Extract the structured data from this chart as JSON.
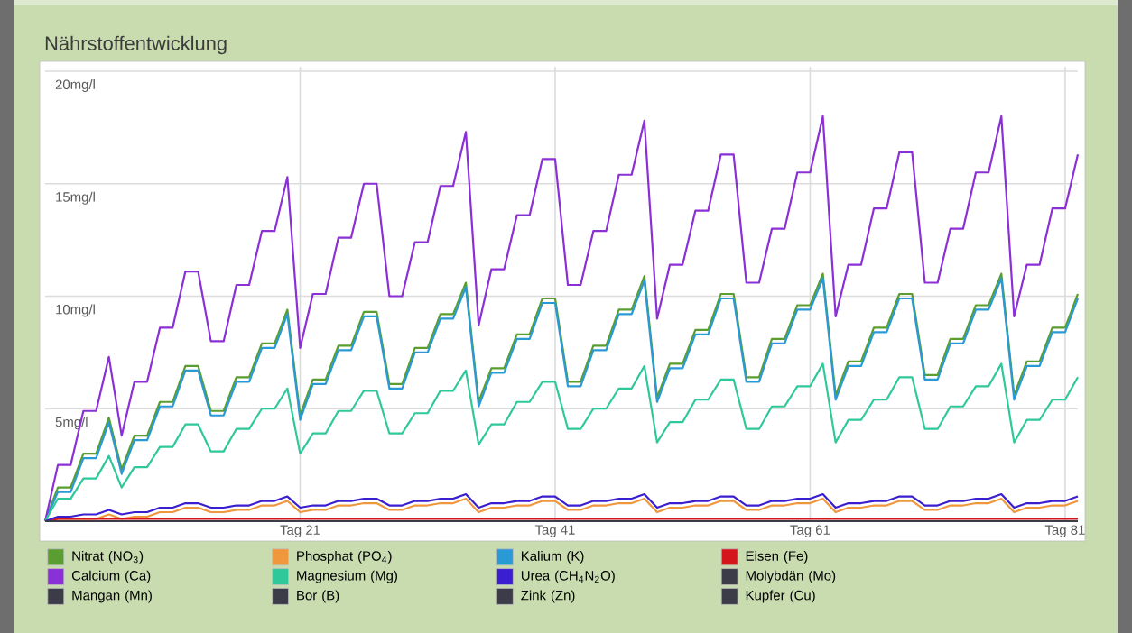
{
  "chart_data": {
    "type": "line",
    "title": "Nährstoffentwicklung",
    "categories": [
      null,
      null,
      null,
      null,
      null,
      null,
      null,
      null,
      null,
      null,
      null,
      null,
      null,
      null,
      null,
      null,
      null,
      null,
      null,
      null,
      "Tag 21",
      null,
      null,
      null,
      null,
      null,
      null,
      null,
      null,
      null,
      null,
      null,
      null,
      null,
      null,
      null,
      null,
      null,
      null,
      null,
      "Tag 41",
      null,
      null,
      null,
      null,
      null,
      null,
      null,
      null,
      null,
      null,
      null,
      null,
      null,
      null,
      null,
      null,
      null,
      null,
      null,
      "Tag 61",
      null,
      null,
      null,
      null,
      null,
      null,
      null,
      null,
      null,
      null,
      null,
      null,
      null,
      null,
      null,
      null,
      null,
      null,
      null,
      "Tag 81",
      null
    ],
    "ylim": [
      0,
      20.2
    ],
    "yticks": [
      {
        "value": 5,
        "label": "5mg/l"
      },
      {
        "value": 10,
        "label": "10mg/l"
      },
      {
        "value": 15,
        "label": "15mg/l"
      },
      {
        "value": 20,
        "label": "20mg/l"
      }
    ],
    "grid": true,
    "legend": "bottom",
    "line_style": "solid",
    "series": [
      {
        "name": "Nitrat (NO$_{3}$)",
        "color": "#5a9e2f",
        "values": [
          0,
          1.5,
          1.5,
          3.0,
          3.0,
          4.6,
          2.3,
          3.8,
          3.8,
          5.3,
          5.3,
          6.9,
          6.9,
          4.9,
          4.9,
          6.4,
          6.4,
          7.9,
          7.9,
          9.4,
          4.7,
          6.3,
          6.3,
          7.8,
          7.8,
          9.3,
          9.3,
          6.1,
          6.1,
          7.7,
          7.7,
          9.2,
          9.2,
          10.6,
          5.3,
          6.8,
          6.8,
          8.3,
          8.3,
          9.9,
          9.9,
          6.2,
          6.2,
          7.8,
          7.8,
          9.4,
          9.4,
          10.9,
          5.5,
          7.0,
          7.0,
          8.5,
          8.5,
          10.1,
          10.1,
          6.4,
          6.4,
          8.1,
          8.1,
          9.6,
          9.6,
          11.0,
          5.6,
          7.1,
          7.1,
          8.6,
          8.6,
          10.1,
          10.1,
          6.5,
          6.5,
          8.1,
          8.1,
          9.6,
          9.6,
          11.0,
          5.6,
          7.1,
          7.1,
          8.6,
          8.6,
          10.1
        ]
      },
      {
        "name": "Phosphat (PO$_{4}$)",
        "color": "#f0963c",
        "values": [
          0,
          0.1,
          0.1,
          0.1,
          0.1,
          0.3,
          0.1,
          0.2,
          0.2,
          0.4,
          0.4,
          0.6,
          0.6,
          0.4,
          0.4,
          0.5,
          0.5,
          0.7,
          0.7,
          0.9,
          0.4,
          0.5,
          0.5,
          0.7,
          0.7,
          0.8,
          0.8,
          0.5,
          0.5,
          0.7,
          0.7,
          0.8,
          0.8,
          1.0,
          0.4,
          0.6,
          0.6,
          0.7,
          0.7,
          0.9,
          0.9,
          0.5,
          0.5,
          0.7,
          0.7,
          0.8,
          0.8,
          1.0,
          0.4,
          0.6,
          0.6,
          0.7,
          0.7,
          0.9,
          0.9,
          0.5,
          0.5,
          0.7,
          0.7,
          0.8,
          0.8,
          1.0,
          0.4,
          0.6,
          0.6,
          0.7,
          0.7,
          0.9,
          0.9,
          0.5,
          0.5,
          0.7,
          0.7,
          0.8,
          0.8,
          1.0,
          0.4,
          0.6,
          0.6,
          0.7,
          0.7,
          0.9
        ]
      },
      {
        "name": "Kalium (K)",
        "color": "#2a9ad6",
        "values": [
          0,
          1.3,
          1.3,
          2.8,
          2.8,
          4.4,
          2.1,
          3.6,
          3.6,
          5.1,
          5.1,
          6.7,
          6.7,
          4.7,
          4.7,
          6.2,
          6.2,
          7.7,
          7.7,
          9.2,
          4.5,
          6.1,
          6.1,
          7.6,
          7.6,
          9.1,
          9.1,
          5.9,
          5.9,
          7.5,
          7.5,
          9.0,
          9.0,
          10.4,
          5.1,
          6.6,
          6.6,
          8.1,
          8.1,
          9.7,
          9.7,
          6.0,
          6.0,
          7.6,
          7.6,
          9.2,
          9.2,
          10.7,
          5.3,
          6.8,
          6.8,
          8.3,
          8.3,
          9.9,
          9.9,
          6.2,
          6.2,
          7.9,
          7.9,
          9.4,
          9.4,
          10.8,
          5.4,
          6.9,
          6.9,
          8.4,
          8.4,
          9.9,
          9.9,
          6.3,
          6.3,
          7.9,
          7.9,
          9.4,
          9.4,
          10.8,
          5.4,
          6.9,
          6.9,
          8.4,
          8.4,
          9.9
        ]
      },
      {
        "name": "Eisen (Fe)",
        "color": "#d4161c",
        "values": [
          0,
          0.1,
          0.1,
          0.1,
          0.1,
          0.1,
          0.1,
          0.1,
          0.1,
          0.1,
          0.1,
          0.1,
          0.1,
          0.1,
          0.1,
          0.1,
          0.1,
          0.1,
          0.1,
          0.1,
          0.1,
          0.1,
          0.1,
          0.1,
          0.1,
          0.1,
          0.1,
          0.1,
          0.1,
          0.1,
          0.1,
          0.1,
          0.1,
          0.1,
          0.1,
          0.1,
          0.1,
          0.1,
          0.1,
          0.1,
          0.1,
          0.1,
          0.1,
          0.1,
          0.1,
          0.1,
          0.1,
          0.1,
          0.1,
          0.1,
          0.1,
          0.1,
          0.1,
          0.1,
          0.1,
          0.1,
          0.1,
          0.1,
          0.1,
          0.1,
          0.1,
          0.1,
          0.1,
          0.1,
          0.1,
          0.1,
          0.1,
          0.1,
          0.1,
          0.1,
          0.1,
          0.1,
          0.1,
          0.1,
          0.1,
          0.1,
          0.1,
          0.1,
          0.1,
          0.1,
          0.1,
          0.1
        ]
      },
      {
        "name": "Calcium (Ca)",
        "color": "#8b2fd6",
        "values": [
          0,
          2.5,
          2.5,
          4.9,
          4.9,
          7.3,
          3.8,
          6.2,
          6.2,
          8.6,
          8.6,
          11.1,
          11.1,
          8.0,
          8.0,
          10.5,
          10.5,
          12.9,
          12.9,
          15.3,
          7.7,
          10.1,
          10.1,
          12.6,
          12.6,
          15.0,
          15.0,
          10.0,
          10.0,
          12.4,
          12.4,
          14.9,
          14.9,
          17.3,
          8.7,
          11.2,
          11.2,
          13.6,
          13.6,
          16.1,
          16.1,
          10.5,
          10.5,
          12.9,
          12.9,
          15.4,
          15.4,
          17.8,
          9.0,
          11.4,
          11.4,
          13.8,
          13.8,
          16.3,
          16.3,
          10.6,
          10.6,
          13.0,
          13.0,
          15.5,
          15.5,
          18.0,
          9.1,
          11.4,
          11.4,
          13.9,
          13.9,
          16.4,
          16.4,
          10.6,
          10.6,
          13.0,
          13.0,
          15.5,
          15.5,
          18.0,
          9.1,
          11.4,
          11.4,
          13.9,
          13.9,
          16.3
        ]
      },
      {
        "name": "Magnesium (Mg)",
        "color": "#2fc89a",
        "values": [
          0,
          1.0,
          1.0,
          1.9,
          1.9,
          2.9,
          1.5,
          2.4,
          2.4,
          3.3,
          3.3,
          4.3,
          4.3,
          3.1,
          3.1,
          4.1,
          4.1,
          5.0,
          5.0,
          5.9,
          3.0,
          3.9,
          3.9,
          4.9,
          4.9,
          5.8,
          5.8,
          3.9,
          3.9,
          4.8,
          4.8,
          5.8,
          5.8,
          6.7,
          3.4,
          4.3,
          4.3,
          5.3,
          5.3,
          6.2,
          6.2,
          4.1,
          4.1,
          5.0,
          5.0,
          5.9,
          5.9,
          6.9,
          3.5,
          4.4,
          4.4,
          5.4,
          5.4,
          6.3,
          6.3,
          4.1,
          4.1,
          5.1,
          5.1,
          6.0,
          6.0,
          7.0,
          3.5,
          4.5,
          4.5,
          5.4,
          5.4,
          6.4,
          6.4,
          4.1,
          4.1,
          5.1,
          5.1,
          6.0,
          6.0,
          7.0,
          3.5,
          4.5,
          4.5,
          5.4,
          5.4,
          6.4
        ]
      },
      {
        "name": "Urea (CH$_{4}$N$_{2}$O)",
        "color": "#3a1fd0",
        "values": [
          0,
          0.2,
          0.2,
          0.3,
          0.3,
          0.5,
          0.3,
          0.4,
          0.4,
          0.6,
          0.6,
          0.8,
          0.8,
          0.6,
          0.6,
          0.7,
          0.7,
          0.9,
          0.9,
          1.1,
          0.6,
          0.7,
          0.7,
          0.9,
          0.9,
          1.0,
          1.0,
          0.7,
          0.7,
          0.9,
          0.9,
          1.0,
          1.0,
          1.2,
          0.6,
          0.8,
          0.8,
          0.9,
          0.9,
          1.1,
          1.1,
          0.7,
          0.7,
          0.9,
          0.9,
          1.0,
          1.0,
          1.2,
          0.6,
          0.8,
          0.8,
          0.9,
          0.9,
          1.1,
          1.1,
          0.7,
          0.7,
          0.9,
          0.9,
          1.0,
          1.0,
          1.2,
          0.6,
          0.8,
          0.8,
          0.9,
          0.9,
          1.1,
          1.1,
          0.7,
          0.7,
          0.9,
          0.9,
          1.0,
          1.0,
          1.2,
          0.6,
          0.8,
          0.8,
          0.9,
          0.9,
          1.1
        ]
      },
      {
        "name": "Molybdän (Mo)",
        "color": "#3c3c48",
        "values": [
          null,
          null,
          null,
          null,
          null,
          null,
          null,
          null,
          null,
          null,
          null,
          null,
          null,
          null,
          null,
          null,
          null,
          null,
          null,
          null,
          null,
          null,
          null,
          null,
          null,
          null,
          null,
          null,
          null,
          null,
          null,
          null,
          null,
          null,
          null,
          null,
          null,
          null,
          null,
          null,
          null,
          null,
          null,
          null,
          null,
          null,
          null,
          null,
          null,
          null,
          null,
          null,
          null,
          null,
          null,
          null,
          null,
          null,
          null,
          null,
          null,
          null,
          null,
          null,
          null,
          null,
          null,
          null,
          null,
          null,
          null,
          null,
          null,
          null,
          null,
          null,
          null,
          null,
          null,
          null,
          null,
          null
        ]
      },
      {
        "name": "Mangan (Mn)",
        "color": "#3c3c48",
        "values": [
          null,
          null,
          null,
          null,
          null,
          null,
          null,
          null,
          null,
          null,
          null,
          null,
          null,
          null,
          null,
          null,
          null,
          null,
          null,
          null,
          null,
          null,
          null,
          null,
          null,
          null,
          null,
          null,
          null,
          null,
          null,
          null,
          null,
          null,
          null,
          null,
          null,
          null,
          null,
          null,
          null,
          null,
          null,
          null,
          null,
          null,
          null,
          null,
          null,
          null,
          null,
          null,
          null,
          null,
          null,
          null,
          null,
          null,
          null,
          null,
          null,
          null,
          null,
          null,
          null,
          null,
          null,
          null,
          null,
          null,
          null,
          null,
          null,
          null,
          null,
          null,
          null,
          null,
          null,
          null,
          null,
          null
        ]
      },
      {
        "name": "Bor (B)",
        "color": "#3c3c48",
        "values": [
          null,
          null,
          null,
          null,
          null,
          null,
          null,
          null,
          null,
          null,
          null,
          null,
          null,
          null,
          null,
          null,
          null,
          null,
          null,
          null,
          null,
          null,
          null,
          null,
          null,
          null,
          null,
          null,
          null,
          null,
          null,
          null,
          null,
          null,
          null,
          null,
          null,
          null,
          null,
          null,
          null,
          null,
          null,
          null,
          null,
          null,
          null,
          null,
          null,
          null,
          null,
          null,
          null,
          null,
          null,
          null,
          null,
          null,
          null,
          null,
          null,
          null,
          null,
          null,
          null,
          null,
          null,
          null,
          null,
          null,
          null,
          null,
          null,
          null,
          null,
          null,
          null,
          null,
          null,
          null,
          null,
          null
        ]
      },
      {
        "name": "Zink (Zn)",
        "color": "#3c3c48",
        "values": [
          null,
          null,
          null,
          null,
          null,
          null,
          null,
          null,
          null,
          null,
          null,
          null,
          null,
          null,
          null,
          null,
          null,
          null,
          null,
          null,
          null,
          null,
          null,
          null,
          null,
          null,
          null,
          null,
          null,
          null,
          null,
          null,
          null,
          null,
          null,
          null,
          null,
          null,
          null,
          null,
          null,
          null,
          null,
          null,
          null,
          null,
          null,
          null,
          null,
          null,
          null,
          null,
          null,
          null,
          null,
          null,
          null,
          null,
          null,
          null,
          null,
          null,
          null,
          null,
          null,
          null,
          null,
          null,
          null,
          null,
          null,
          null,
          null,
          null,
          null,
          null,
          null,
          null,
          null,
          null,
          null,
          null
        ]
      },
      {
        "name": "Kupfer (Cu)",
        "color": "#3c3c48",
        "values": [
          0,
          0,
          0,
          0,
          0,
          0,
          0,
          0,
          0,
          0,
          0,
          0,
          0,
          0,
          0,
          0,
          0,
          0,
          0,
          0,
          0,
          0,
          0,
          0,
          0,
          0,
          0,
          0,
          0,
          0,
          0,
          0,
          0,
          0,
          0,
          0,
          0,
          0,
          0,
          0,
          0,
          0,
          0,
          0,
          0,
          0,
          0,
          0,
          0,
          0,
          0,
          0,
          0,
          0,
          0,
          0,
          0,
          0,
          0,
          0,
          0,
          0,
          0,
          0,
          0,
          0,
          0,
          0,
          0,
          0,
          0,
          0,
          0,
          0,
          0,
          0,
          0,
          0,
          0,
          0,
          0,
          0
        ]
      }
    ]
  }
}
